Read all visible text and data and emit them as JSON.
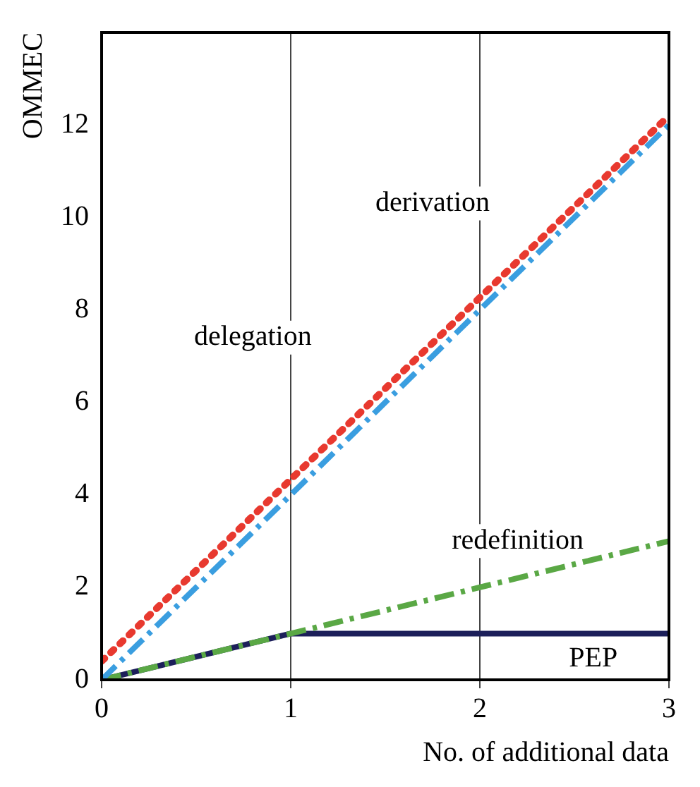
{
  "chart_data": {
    "type": "line",
    "xlabel": "No. of additional data",
    "ylabel": "OMMEC",
    "xlim": [
      0,
      3
    ],
    "xticks": [
      0,
      1,
      2,
      3
    ],
    "ylim": [
      0,
      14
    ],
    "yticks": [
      0,
      2,
      4,
      6,
      8,
      10,
      12
    ],
    "grid": "x",
    "legend": false,
    "marker": "none",
    "series": [
      {
        "name": "delegation",
        "color": "#e8392f",
        "line_style": "dotted",
        "x": [
          0,
          3
        ],
        "values": [
          0.4,
          12.2
        ]
      },
      {
        "name": "derivation",
        "color": "#3a9ee0",
        "line_style": "dashed",
        "x": [
          0,
          3
        ],
        "values": [
          0,
          12
        ]
      },
      {
        "name": "redefinition",
        "color": "#5aa845",
        "line_style": "dashed",
        "x": [
          0,
          3
        ],
        "values": [
          0,
          3
        ]
      },
      {
        "name": "PEP",
        "color": "#1c1f5a",
        "line_style": "solid",
        "x": [
          0,
          1,
          3
        ],
        "values": [
          0,
          1,
          1
        ]
      }
    ]
  }
}
